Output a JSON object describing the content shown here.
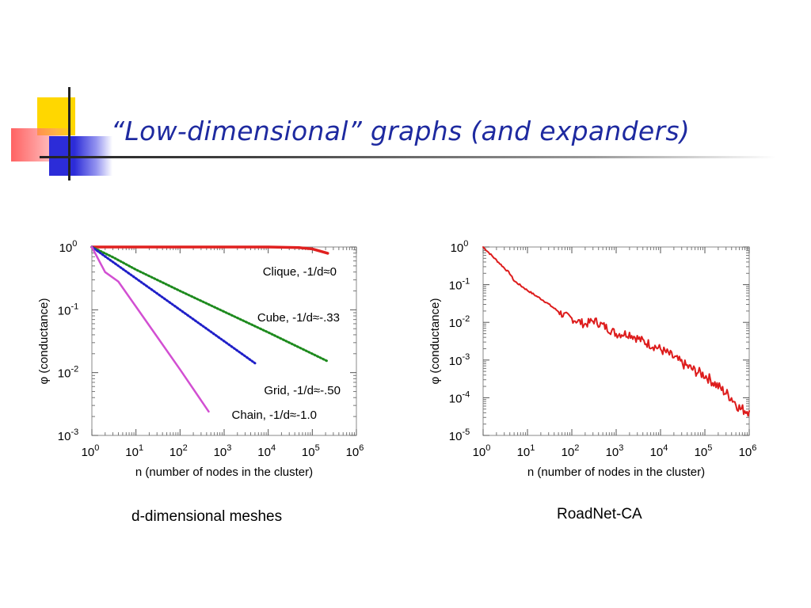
{
  "slide": {
    "title": "“Low-dimensional” graphs (and expanders)",
    "colors": {
      "title": "#1e2aa0",
      "yellow": "#ffd700",
      "red": "#ff5a5a",
      "blue": "#2c2cd8"
    }
  },
  "chart_data": [
    {
      "type": "line",
      "caption": "d-dimensional meshes",
      "x_scale": "log",
      "y_scale": "log",
      "xlim_exp": [
        0,
        6
      ],
      "ylim_exp": [
        -3,
        0
      ],
      "xlabel": "n (number of nodes in the cluster)",
      "ylabel": "φ (conductance)",
      "x_ticks": [
        {
          "base": "10",
          "exp": "0"
        },
        {
          "base": "10",
          "exp": "1"
        },
        {
          "base": "10",
          "exp": "2"
        },
        {
          "base": "10",
          "exp": "3"
        },
        {
          "base": "10",
          "exp": "4"
        },
        {
          "base": "10",
          "exp": "5"
        },
        {
          "base": "10",
          "exp": "6"
        }
      ],
      "y_ticks": [
        {
          "base": "10",
          "exp": "0",
          "value_exp": 0
        },
        {
          "base": "10",
          "exp": "-1",
          "value_exp": -1
        },
        {
          "base": "10",
          "exp": "-2",
          "value_exp": -2
        },
        {
          "base": "10",
          "exp": "-3",
          "value_exp": -3
        }
      ],
      "series": [
        {
          "name": "Clique",
          "label": "Clique, -1/d≈0",
          "color": "#e0201f",
          "style": "solid",
          "width": 3.5,
          "points": [
            [
              0,
              0
            ],
            [
              1,
              0
            ],
            [
              2,
              0
            ],
            [
              3,
              0
            ],
            [
              4,
              0
            ],
            [
              4.7,
              -0.01
            ],
            [
              5,
              -0.03
            ],
            [
              5.2,
              -0.07
            ],
            [
              5.35,
              -0.1
            ]
          ]
        },
        {
          "name": "Cube",
          "label": "Cube, -1/d≈-.33",
          "color": "#1d8a1d",
          "style": "dotted",
          "width": 3,
          "points": [
            [
              0,
              0
            ],
            [
              0.5,
              -0.17
            ],
            [
              1,
              -0.36
            ],
            [
              2,
              -0.7
            ],
            [
              3,
              -1.03
            ],
            [
              4,
              -1.36
            ],
            [
              5,
              -1.7
            ],
            [
              5.35,
              -1.82
            ]
          ]
        },
        {
          "name": "Grid",
          "label": "Grid, -1/d≈-.50",
          "color": "#1f1fc8",
          "style": "dotted",
          "width": 3,
          "points": [
            [
              0,
              0
            ],
            [
              0.3,
              -0.15
            ],
            [
              1,
              -0.5
            ],
            [
              1.5,
              -0.75
            ],
            [
              2,
              -1.0
            ],
            [
              2.4,
              -1.2
            ],
            [
              3,
              -1.5
            ],
            [
              3.7,
              -1.85
            ]
          ]
        },
        {
          "name": "Chain",
          "label": "Chain, -1/d≈-1.0",
          "color": "#d24fd2",
          "style": "solid",
          "width": 2.5,
          "points": [
            [
              0,
              0
            ],
            [
              0.3,
              -0.4
            ],
            [
              0.6,
              -0.55
            ],
            [
              1,
              -0.95
            ],
            [
              1.5,
              -1.45
            ],
            [
              2,
              -1.95
            ],
            [
              2.65,
              -2.62
            ]
          ]
        }
      ]
    },
    {
      "type": "line",
      "caption": "RoadNet-CA",
      "x_scale": "log",
      "y_scale": "log",
      "xlim_exp": [
        0,
        6
      ],
      "ylim_exp": [
        -5,
        0
      ],
      "xlabel": "n (number of nodes in the cluster)",
      "ylabel": "φ (conductance)",
      "x_ticks": [
        {
          "base": "10",
          "exp": "0"
        },
        {
          "base": "10",
          "exp": "1"
        },
        {
          "base": "10",
          "exp": "2"
        },
        {
          "base": "10",
          "exp": "3"
        },
        {
          "base": "10",
          "exp": "4"
        },
        {
          "base": "10",
          "exp": "5"
        },
        {
          "base": "10",
          "exp": "6"
        }
      ],
      "y_ticks": [
        {
          "base": "10",
          "exp": "0",
          "value_exp": 0
        },
        {
          "base": "10",
          "exp": "-1",
          "value_exp": -1
        },
        {
          "base": "10",
          "exp": "-2",
          "value_exp": -2
        },
        {
          "base": "10",
          "exp": "-3",
          "value_exp": -3
        },
        {
          "base": "10",
          "exp": "-4",
          "value_exp": -4
        },
        {
          "base": "10",
          "exp": "-5",
          "value_exp": -5
        }
      ],
      "series": [
        {
          "name": "RoadNet-CA",
          "color": "#dd1c1c",
          "style": "solid",
          "width": 2,
          "points": [
            [
              0,
              0
            ],
            [
              0.3,
              -0.35
            ],
            [
              0.6,
              -0.7
            ],
            [
              0.7,
              -0.9
            ],
            [
              1,
              -1.15
            ],
            [
              1.4,
              -1.45
            ],
            [
              1.8,
              -1.8
            ],
            [
              2,
              -1.9
            ],
            [
              2.3,
              -2.05
            ],
            [
              2.5,
              -1.95
            ],
            [
              2.8,
              -2.15
            ],
            [
              3,
              -2.3
            ],
            [
              3.3,
              -2.3
            ],
            [
              3.6,
              -2.5
            ],
            [
              3.9,
              -2.65
            ],
            [
              4.2,
              -2.85
            ],
            [
              4.5,
              -3.1
            ],
            [
              4.8,
              -3.3
            ],
            [
              5,
              -3.4
            ],
            [
              5.3,
              -3.7
            ],
            [
              5.6,
              -4.0
            ],
            [
              5.8,
              -4.3
            ],
            [
              6,
              -4.35
            ]
          ],
          "noise": 0.15
        }
      ]
    }
  ]
}
